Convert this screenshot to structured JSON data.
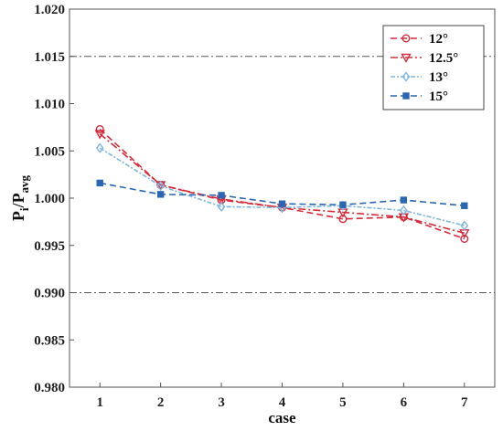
{
  "chart_data": {
    "type": "line",
    "xlabel": "case",
    "ylabel": {
      "main": "P",
      "sub1": "i",
      "sep": "/P",
      "sub2": "avg"
    },
    "xlim": [
      0.5,
      7.5
    ],
    "ylim": [
      0.98,
      1.02
    ],
    "x_ticks": [
      1,
      2,
      3,
      4,
      5,
      6,
      7
    ],
    "y_ticks": [
      "0.980",
      "0.985",
      "0.990",
      "0.995",
      "1.000",
      "1.005",
      "1.010",
      "1.015",
      "1.020"
    ],
    "reference_lines": [
      1.015,
      0.99
    ],
    "legend_position": "top-right",
    "grid": false,
    "x": [
      1,
      2,
      3,
      4,
      5,
      6,
      7
    ],
    "series": [
      {
        "name": "12°",
        "color": "#d62b3a",
        "marker": "circle",
        "dash": "7,4",
        "values": [
          1.0073,
          1.0014,
          0.9998,
          0.999,
          0.9978,
          0.998,
          0.9957
        ]
      },
      {
        "name": "12.5°",
        "color": "#d62b3a",
        "marker": "triangle-down",
        "dash": "8,3,2,3",
        "values": [
          1.0068,
          1.0014,
          0.9999,
          0.999,
          0.9985,
          0.998,
          0.9963
        ]
      },
      {
        "name": "13°",
        "color": "#7fb6e0",
        "marker": "diamond",
        "dash": "5,2,2,2",
        "values": [
          1.0053,
          1.0013,
          0.9991,
          0.999,
          0.9992,
          0.9987,
          0.9971
        ]
      },
      {
        "name": "15°",
        "color": "#2a66b3",
        "marker": "square",
        "dash": "7,4",
        "values": [
          1.0016,
          1.0004,
          1.0003,
          0.9994,
          0.9993,
          0.9998,
          0.9992
        ]
      }
    ]
  }
}
